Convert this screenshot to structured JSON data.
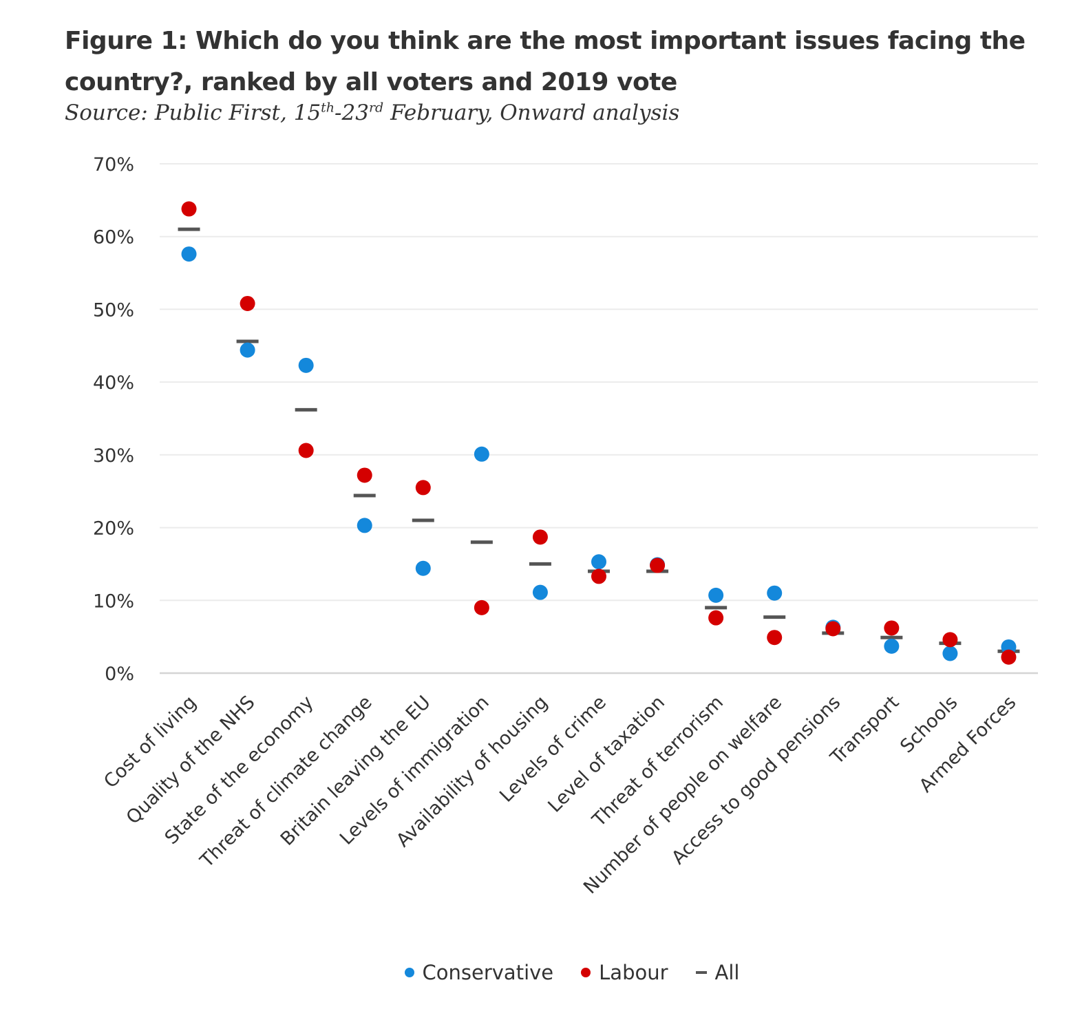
{
  "header": {
    "title": "Figure 1: Which do you think are the most important issues facing the country?, ranked by all voters and 2019 vote",
    "subtitle_prefix": "Source: Public First, 15",
    "subtitle_sup1": "th",
    "subtitle_mid": "-23",
    "subtitle_sup2": "rd",
    "subtitle_suffix": " February, Onward analysis"
  },
  "colors": {
    "conservative": "#1488db",
    "labour": "#d40000",
    "all": "#555555",
    "grid": "#ebebeb",
    "axis": "#d4d4d4"
  },
  "chart_data": {
    "type": "scatter",
    "title": "Figure 1: Which do you think are the most important issues facing the country?, ranked by all voters and 2019 vote",
    "xlabel": "",
    "ylabel": "",
    "ylim": [
      0,
      70
    ],
    "yticks": [
      0,
      10,
      20,
      30,
      40,
      50,
      60,
      70
    ],
    "ytick_format": "%",
    "grid": true,
    "legend_position": "bottom-center",
    "categories": [
      "Cost of living",
      "Quality of the NHS",
      "State of the economy",
      "Threat of climate change",
      "Britain leaving the EU",
      "Levels of immigration",
      "Availability of housing",
      "Levels of crime",
      "Level of taxation",
      "Threat of terrorism",
      "Number of people on welfare",
      "Access to good pensions",
      "Transport",
      "Schools",
      "Armed Forces"
    ],
    "series": [
      {
        "name": "Conservative",
        "marker": "dot",
        "values": [
          57.6,
          44.4,
          42.3,
          20.3,
          14.4,
          30.1,
          11.1,
          15.3,
          14.9,
          10.7,
          11.0,
          6.3,
          3.7,
          2.7,
          3.6
        ]
      },
      {
        "name": "Labour",
        "marker": "dot",
        "values": [
          63.8,
          50.8,
          30.6,
          27.2,
          25.5,
          9.0,
          18.7,
          13.3,
          14.8,
          7.6,
          4.9,
          6.1,
          6.2,
          4.6,
          2.2
        ]
      },
      {
        "name": "All",
        "marker": "dash",
        "values": [
          61.0,
          45.6,
          36.2,
          24.4,
          21.0,
          18.0,
          15.0,
          14.0,
          14.0,
          9.0,
          7.7,
          5.5,
          4.9,
          4.1,
          3.0
        ]
      }
    ]
  },
  "legend": {
    "conservative": "Conservative",
    "labour": "Labour",
    "all": "All"
  }
}
